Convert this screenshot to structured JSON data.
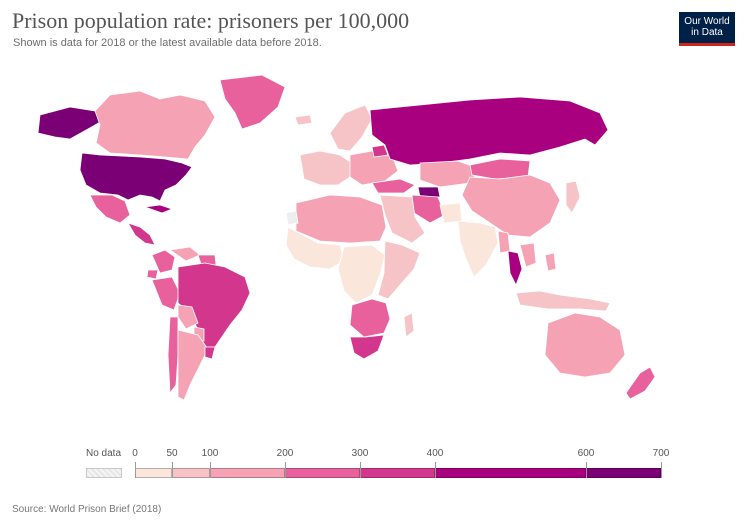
{
  "header": {
    "title": "Prison population rate: prisoners per 100,000",
    "subtitle": "Shown is data for 2018 or the latest available data before 2018."
  },
  "logo": {
    "line1": "Our World",
    "line2": "in Data"
  },
  "legend": {
    "no_data_label": "No data",
    "no_data_color": "#eeeeee",
    "thresholds": [
      "0",
      "50",
      "100",
      "200",
      "300",
      "400",
      "600",
      "700"
    ],
    "colors": [
      "#fbe6dc",
      "#f6c3c6",
      "#f4a2b4",
      "#e8619c",
      "#d3378d",
      "#a8007e",
      "#7b0076"
    ]
  },
  "source": "Source: World Prison Brief (2018)",
  "map_data": {
    "type": "choropleth",
    "value_label": "prisoners per 100,000",
    "regions": [
      {
        "name": "United States",
        "bin": 6
      },
      {
        "name": "Alaska",
        "bin": 6
      },
      {
        "name": "Canada",
        "bin": 2
      },
      {
        "name": "Greenland",
        "bin": 3
      },
      {
        "name": "Mexico",
        "bin": 3
      },
      {
        "name": "Central America",
        "bin": 4
      },
      {
        "name": "Cuba",
        "bin": 5
      },
      {
        "name": "Colombia",
        "bin": 3
      },
      {
        "name": "Venezuela",
        "bin": 2
      },
      {
        "name": "Guyana & Suriname",
        "bin": 3
      },
      {
        "name": "Peru",
        "bin": 3
      },
      {
        "name": "Ecuador",
        "bin": 3
      },
      {
        "name": "Brazil",
        "bin": 4
      },
      {
        "name": "Bolivia",
        "bin": 2
      },
      {
        "name": "Paraguay",
        "bin": 2
      },
      {
        "name": "Chile",
        "bin": 3
      },
      {
        "name": "Argentina",
        "bin": 2
      },
      {
        "name": "Uruguay",
        "bin": 4
      },
      {
        "name": "Iceland",
        "bin": 1
      },
      {
        "name": "Scandinavia",
        "bin": 1
      },
      {
        "name": "Western Europe",
        "bin": 1
      },
      {
        "name": "Eastern Europe",
        "bin": 2
      },
      {
        "name": "Russia",
        "bin": 5
      },
      {
        "name": "Belarus",
        "bin": 4
      },
      {
        "name": "Turkey",
        "bin": 3
      },
      {
        "name": "Kazakhstan",
        "bin": 2
      },
      {
        "name": "Turkmenistan",
        "bin": 6
      },
      {
        "name": "Iran",
        "bin": 3
      },
      {
        "name": "Middle East",
        "bin": 1
      },
      {
        "name": "Mongolia",
        "bin": 3
      },
      {
        "name": "China",
        "bin": 2
      },
      {
        "name": "India",
        "bin": 0
      },
      {
        "name": "Pakistan",
        "bin": 0
      },
      {
        "name": "Myanmar",
        "bin": 2
      },
      {
        "name": "Thailand",
        "bin": 5
      },
      {
        "name": "Japan",
        "bin": 1
      },
      {
        "name": "Southeast Asia",
        "bin": 2
      },
      {
        "name": "Indonesia",
        "bin": 1
      },
      {
        "name": "Philippines",
        "bin": 2
      },
      {
        "name": "Australia",
        "bin": 2
      },
      {
        "name": "New Zealand",
        "bin": 3
      },
      {
        "name": "North Africa",
        "bin": 2
      },
      {
        "name": "West Africa",
        "bin": 0
      },
      {
        "name": "Central Africa",
        "bin": 0
      },
      {
        "name": "East Africa",
        "bin": 1
      },
      {
        "name": "Southern Africa",
        "bin": 3
      },
      {
        "name": "South Africa",
        "bin": 4
      },
      {
        "name": "Madagascar",
        "bin": 1
      },
      {
        "name": "Western Sahara",
        "bin": -1
      }
    ]
  }
}
